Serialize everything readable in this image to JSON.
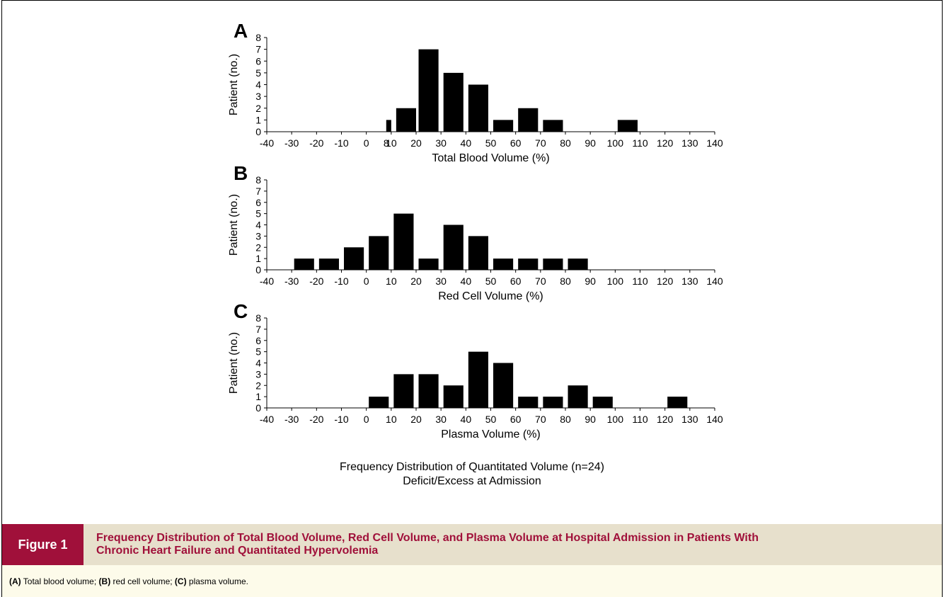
{
  "chart_data": [
    {
      "type": "bar",
      "panel_label": "A",
      "xlabel": "Total Blood Volume (%)",
      "ylabel": "Patient (no.)",
      "ylim": [
        0,
        8
      ],
      "yticks": [
        "0",
        "1",
        "2",
        "3",
        "4",
        "5",
        "6",
        "7",
        "8"
      ],
      "xlim": [
        -40,
        140
      ],
      "xticks": [
        "-40",
        "-30",
        "-20",
        "-10",
        "0",
        "8",
        "10",
        "20",
        "30",
        "40",
        "50",
        "60",
        "70",
        "80",
        "90",
        "100",
        "110",
        "120",
        "130",
        "140"
      ],
      "bars": [
        {
          "x0": 8,
          "x1": 10,
          "value": 1
        },
        {
          "x0": 12,
          "x1": 20,
          "value": 2
        },
        {
          "x0": 21,
          "x1": 29,
          "value": 7
        },
        {
          "x0": 31,
          "x1": 39,
          "value": 5
        },
        {
          "x0": 41,
          "x1": 49,
          "value": 4
        },
        {
          "x0": 51,
          "x1": 59,
          "value": 1
        },
        {
          "x0": 61,
          "x1": 69,
          "value": 2
        },
        {
          "x0": 71,
          "x1": 79,
          "value": 1
        },
        {
          "x0": 101,
          "x1": 109,
          "value": 1
        }
      ]
    },
    {
      "type": "bar",
      "panel_label": "B",
      "xlabel": "Red Cell Volume (%)",
      "ylabel": "Patient (no.)",
      "ylim": [
        0,
        8
      ],
      "yticks": [
        "0",
        "1",
        "2",
        "3",
        "4",
        "5",
        "6",
        "7",
        "8"
      ],
      "xlim": [
        -40,
        140
      ],
      "xticks": [
        "-40",
        "-30",
        "-20",
        "-10",
        "0",
        "10",
        "20",
        "30",
        "40",
        "50",
        "60",
        "70",
        "80",
        "90",
        "100",
        "110",
        "120",
        "130",
        "140"
      ],
      "bars": [
        {
          "x0": -29,
          "x1": -21,
          "value": 1
        },
        {
          "x0": -19,
          "x1": -11,
          "value": 1
        },
        {
          "x0": -9,
          "x1": -1,
          "value": 2
        },
        {
          "x0": 1,
          "x1": 9,
          "value": 3
        },
        {
          "x0": 11,
          "x1": 19,
          "value": 5
        },
        {
          "x0": 21,
          "x1": 29,
          "value": 1
        },
        {
          "x0": 31,
          "x1": 39,
          "value": 4
        },
        {
          "x0": 41,
          "x1": 49,
          "value": 3
        },
        {
          "x0": 51,
          "x1": 59,
          "value": 1
        },
        {
          "x0": 61,
          "x1": 69,
          "value": 1
        },
        {
          "x0": 71,
          "x1": 79,
          "value": 1
        },
        {
          "x0": 81,
          "x1": 89,
          "value": 1
        }
      ]
    },
    {
      "type": "bar",
      "panel_label": "C",
      "xlabel": "Plasma Volume (%)",
      "ylabel": "Patient (no.)",
      "ylim": [
        0,
        8
      ],
      "yticks": [
        "0",
        "1",
        "2",
        "3",
        "4",
        "5",
        "6",
        "7",
        "8"
      ],
      "xlim": [
        -40,
        140
      ],
      "xticks": [
        "-40",
        "-30",
        "-20",
        "-10",
        "0",
        "10",
        "20",
        "30",
        "40",
        "50",
        "60",
        "70",
        "80",
        "90",
        "100",
        "110",
        "120",
        "130",
        "140"
      ],
      "bars": [
        {
          "x0": 1,
          "x1": 9,
          "value": 1
        },
        {
          "x0": 11,
          "x1": 19,
          "value": 3
        },
        {
          "x0": 21,
          "x1": 29,
          "value": 3
        },
        {
          "x0": 31,
          "x1": 39,
          "value": 2
        },
        {
          "x0": 41,
          "x1": 49,
          "value": 5
        },
        {
          "x0": 51,
          "x1": 59,
          "value": 4
        },
        {
          "x0": 61,
          "x1": 69,
          "value": 1
        },
        {
          "x0": 71,
          "x1": 79,
          "value": 1
        },
        {
          "x0": 81,
          "x1": 89,
          "value": 2
        },
        {
          "x0": 91,
          "x1": 99,
          "value": 1
        },
        {
          "x0": 121,
          "x1": 129,
          "value": 1
        }
      ]
    }
  ],
  "summary": {
    "line1": "Frequency Distribution of Quantitated Volume (n=24)",
    "line2": "Deficit/Excess at Admission"
  },
  "figure": {
    "label": "Figure 1",
    "title": "Frequency Distribution of Total Blood Volume, Red Cell Volume, and Plasma Volume at Hospital Admission in Patients With Chronic Heart Failure and Quantitated Hypervolemia",
    "legend": [
      {
        "key": "(A)",
        "text": " Total blood volume; "
      },
      {
        "key": "(B)",
        "text": " red cell volume; "
      },
      {
        "key": "(C)",
        "text": " plasma volume."
      }
    ]
  },
  "colors": {
    "bar": "#000000",
    "label_bg": "#a0103a",
    "header_bg": "#e7e0cc",
    "legend_bg": "#fdfbea",
    "title": "#a0103a"
  }
}
